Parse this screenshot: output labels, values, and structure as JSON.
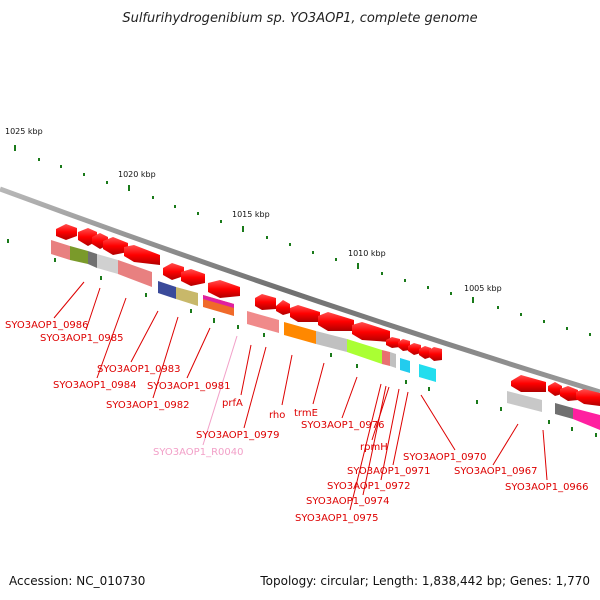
{
  "title": "Sulfurihydrogenibium sp. YO3AOP1, complete genome",
  "accession": "Accession: NC_010730",
  "topology": "Topology: circular; Length: 1,838,442 bp; Genes: 1,770",
  "kbp_labels": [
    "1025 kbp",
    "1020 kbp",
    "1015 kbp",
    "1010 kbp",
    "1005 kbp"
  ],
  "colors": {
    "gene_arrow": "#ff0000",
    "label_red": "#dd0000",
    "label_pink": "#f2a0c8",
    "backbone": "#808080",
    "tick": "#1a7a1a"
  },
  "gene_labels": [
    "SYO3AOP1_0986",
    "SYO3AOP1_0985",
    "SYO3AOP1_0983",
    "SYO3AOP1_0984",
    "SYO3AOP1_0981",
    "SYO3AOP1_0982",
    "prfA",
    "rho",
    "trmE",
    "SYO3AOP1_0979",
    "SYO3AOP1_R0040",
    "SYO3AOP1_0976",
    "rpmH",
    "SYO3AOP1_0971",
    "SYO3AOP1_0972",
    "SYO3AOP1_0974",
    "SYO3AOP1_0975",
    "SYO3AOP1_0970",
    "SYO3AOP1_0967",
    "SYO3AOP1_0966"
  ]
}
